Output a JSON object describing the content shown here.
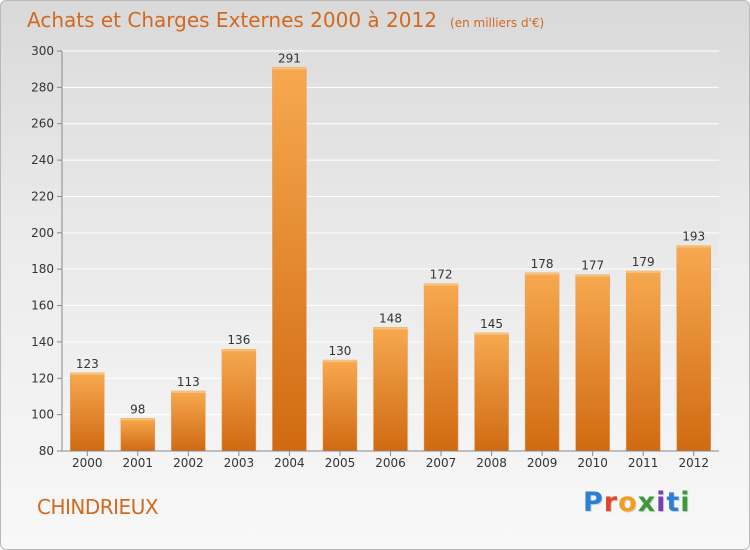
{
  "chart_data": {
    "type": "bar",
    "title": "Achats et Charges Externes 2000 à 2012",
    "subtitle": "(en milliers d'€)",
    "categories": [
      "2000",
      "2001",
      "2002",
      "2003",
      "2004",
      "2005",
      "2006",
      "2007",
      "2008",
      "2009",
      "2010",
      "2011",
      "2012"
    ],
    "values": [
      123,
      98,
      113,
      136,
      291,
      130,
      148,
      172,
      145,
      178,
      177,
      179,
      193
    ],
    "ylim": [
      80,
      300
    ],
    "yticks": [
      80,
      100,
      120,
      140,
      160,
      180,
      200,
      220,
      240,
      260,
      280,
      300
    ],
    "grid": true,
    "bar_color": "#f09030",
    "xlabel": "",
    "ylabel": ""
  },
  "commune": "CHINDRIEUX",
  "brand": {
    "letters": [
      "P",
      "r",
      "o",
      "x",
      "i",
      "t",
      "i"
    ],
    "colors": [
      "#2b7fd4",
      "#e2462b",
      "#f0a020",
      "#3a9a3a",
      "#7a3fb0",
      "#2b7fd4",
      "#3a9a3a"
    ]
  }
}
